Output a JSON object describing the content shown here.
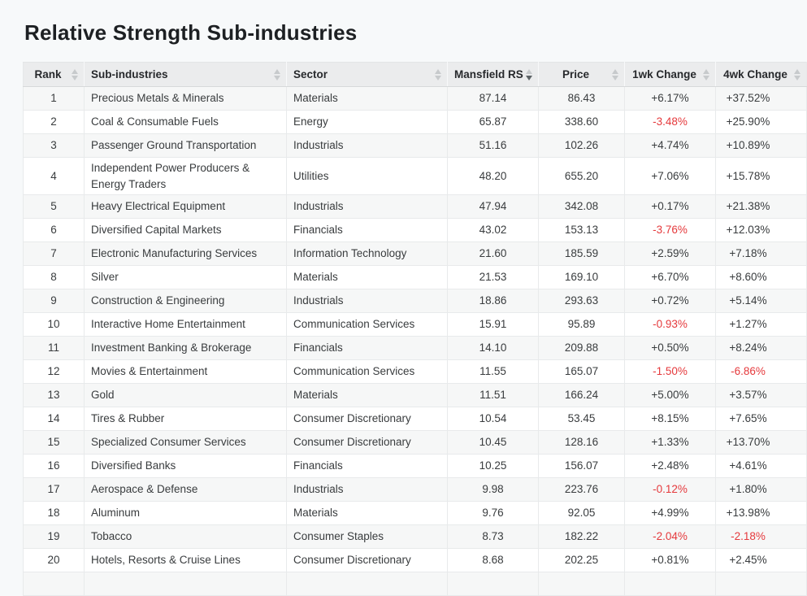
{
  "page": {
    "title": "Relative Strength Sub-industries"
  },
  "colors": {
    "negative_change": "#e5393c",
    "positive_change": "#393c3e",
    "header_background": "#ebeced",
    "stripe_background": "#f6f7f7"
  },
  "table": {
    "columns": [
      {
        "key": "rank",
        "label": "Rank",
        "align": "center",
        "sort": "none"
      },
      {
        "key": "name",
        "label": "Sub-industries",
        "align": "left",
        "sort": "none"
      },
      {
        "key": "sector",
        "label": "Sector",
        "align": "left",
        "sort": "none"
      },
      {
        "key": "mansfield_rs",
        "label": "Mansfield RS",
        "align": "center",
        "sort": "desc"
      },
      {
        "key": "price",
        "label": "Price",
        "align": "center",
        "sort": "none"
      },
      {
        "key": "wk1_change",
        "label": "1wk Change",
        "align": "center",
        "sort": "none"
      },
      {
        "key": "wk4_change",
        "label": "4wk Change",
        "align": "center",
        "sort": "none"
      }
    ],
    "rows": [
      {
        "rank": "1",
        "name": "Precious Metals & Minerals",
        "sector": "Materials",
        "mansfield_rs": "87.14",
        "price": "86.43",
        "wk1_change": "+6.17%",
        "wk4_change": "+37.52%"
      },
      {
        "rank": "2",
        "name": "Coal & Consumable Fuels",
        "sector": "Energy",
        "mansfield_rs": "65.87",
        "price": "338.60",
        "wk1_change": "-3.48%",
        "wk4_change": "+25.90%"
      },
      {
        "rank": "3",
        "name": "Passenger Ground Transportation",
        "sector": "Industrials",
        "mansfield_rs": "51.16",
        "price": "102.26",
        "wk1_change": "+4.74%",
        "wk4_change": "+10.89%"
      },
      {
        "rank": "4",
        "name": "Independent Power Producers & Energy Traders",
        "sector": "Utilities",
        "mansfield_rs": "48.20",
        "price": "655.20",
        "wk1_change": "+7.06%",
        "wk4_change": "+15.78%"
      },
      {
        "rank": "5",
        "name": "Heavy Electrical Equipment",
        "sector": "Industrials",
        "mansfield_rs": "47.94",
        "price": "342.08",
        "wk1_change": "+0.17%",
        "wk4_change": "+21.38%"
      },
      {
        "rank": "6",
        "name": "Diversified Capital Markets",
        "sector": "Financials",
        "mansfield_rs": "43.02",
        "price": "153.13",
        "wk1_change": "-3.76%",
        "wk4_change": "+12.03%"
      },
      {
        "rank": "7",
        "name": "Electronic Manufacturing Services",
        "sector": "Information Technology",
        "mansfield_rs": "21.60",
        "price": "185.59",
        "wk1_change": "+2.59%",
        "wk4_change": "+7.18%"
      },
      {
        "rank": "8",
        "name": "Silver",
        "sector": "Materials",
        "mansfield_rs": "21.53",
        "price": "169.10",
        "wk1_change": "+6.70%",
        "wk4_change": "+8.60%"
      },
      {
        "rank": "9",
        "name": "Construction & Engineering",
        "sector": "Industrials",
        "mansfield_rs": "18.86",
        "price": "293.63",
        "wk1_change": "+0.72%",
        "wk4_change": "+5.14%"
      },
      {
        "rank": "10",
        "name": "Interactive Home Entertainment",
        "sector": "Communication Services",
        "mansfield_rs": "15.91",
        "price": "95.89",
        "wk1_change": "-0.93%",
        "wk4_change": "+1.27%"
      },
      {
        "rank": "11",
        "name": "Investment Banking & Brokerage",
        "sector": "Financials",
        "mansfield_rs": "14.10",
        "price": "209.88",
        "wk1_change": "+0.50%",
        "wk4_change": "+8.24%"
      },
      {
        "rank": "12",
        "name": "Movies & Entertainment",
        "sector": "Communication Services",
        "mansfield_rs": "11.55",
        "price": "165.07",
        "wk1_change": "-1.50%",
        "wk4_change": "-6.86%"
      },
      {
        "rank": "13",
        "name": "Gold",
        "sector": "Materials",
        "mansfield_rs": "11.51",
        "price": "166.24",
        "wk1_change": "+5.00%",
        "wk4_change": "+3.57%"
      },
      {
        "rank": "14",
        "name": "Tires & Rubber",
        "sector": "Consumer Discretionary",
        "mansfield_rs": "10.54",
        "price": "53.45",
        "wk1_change": "+8.15%",
        "wk4_change": "+7.65%"
      },
      {
        "rank": "15",
        "name": "Specialized Consumer Services",
        "sector": "Consumer Discretionary",
        "mansfield_rs": "10.45",
        "price": "128.16",
        "wk1_change": "+1.33%",
        "wk4_change": "+13.70%"
      },
      {
        "rank": "16",
        "name": "Diversified Banks",
        "sector": "Financials",
        "mansfield_rs": "10.25",
        "price": "156.07",
        "wk1_change": "+2.48%",
        "wk4_change": "+4.61%"
      },
      {
        "rank": "17",
        "name": "Aerospace & Defense",
        "sector": "Industrials",
        "mansfield_rs": "9.98",
        "price": "223.76",
        "wk1_change": "-0.12%",
        "wk4_change": "+1.80%"
      },
      {
        "rank": "18",
        "name": "Aluminum",
        "sector": "Materials",
        "mansfield_rs": "9.76",
        "price": "92.05",
        "wk1_change": "+4.99%",
        "wk4_change": "+13.98%"
      },
      {
        "rank": "19",
        "name": "Tobacco",
        "sector": "Consumer Staples",
        "mansfield_rs": "8.73",
        "price": "182.22",
        "wk1_change": "-2.04%",
        "wk4_change": "-2.18%"
      },
      {
        "rank": "20",
        "name": "Hotels, Resorts & Cruise Lines",
        "sector": "Consumer Discretionary",
        "mansfield_rs": "8.68",
        "price": "202.25",
        "wk1_change": "+0.81%",
        "wk4_change": "+2.45%"
      }
    ]
  }
}
